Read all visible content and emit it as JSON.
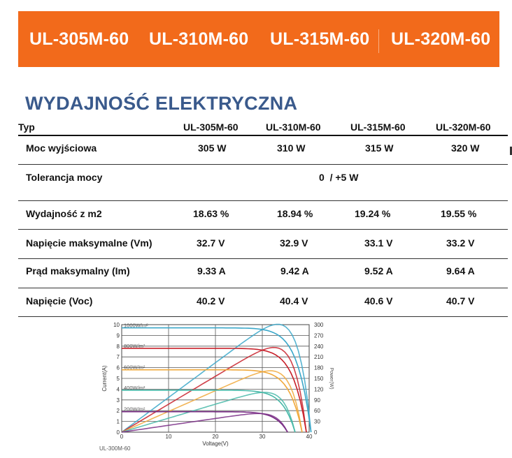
{
  "banner": {
    "models": [
      "UL-305M-60",
      "UL-310M-60",
      "UL-315M-60",
      "UL-320M-60"
    ],
    "color": "#f26a1b"
  },
  "section_title": "WYDAJNOŚĆ ELEKTRYCZNA",
  "table": {
    "header": {
      "type": "Typ",
      "cols": [
        "UL-305M-60",
        "UL-310M-60",
        "UL-315M-60",
        "UL-320M-60"
      ]
    },
    "rows": [
      {
        "label": "Moc wyjściowa",
        "values": [
          "305 W",
          "310 W",
          "315 W",
          "320 W"
        ]
      },
      {
        "label": "Tolerancja mocy",
        "merged": "0  / +5 W"
      },
      {
        "label": "Wydajność z m2",
        "values": [
          "18.63 %",
          "18.94 %",
          "19.24 %",
          "19.55 %"
        ]
      },
      {
        "label": "Napięcie maksymalne (Vm)",
        "values": [
          "32.7 V",
          "32.9 V",
          "33.1 V",
          "33.2 V"
        ]
      },
      {
        "label": "Prąd maksymalny (Im)",
        "values": [
          "9.33 A",
          "9.42 A",
          "9.52 A",
          "9.64 A"
        ]
      },
      {
        "label": "Napięcie (Voc)",
        "values": [
          "40.2 V",
          "40.4 V",
          "40.6 V",
          "40.7 V"
        ]
      }
    ]
  },
  "chart_data": {
    "type": "line",
    "title": "",
    "caption": "UL-300M-60",
    "xlabel": "Voltage(V)",
    "ylabel": "Current(A)",
    "y2label": "Power(W)",
    "xlim": [
      0,
      40
    ],
    "ylim": [
      0,
      10
    ],
    "y2lim": [
      0,
      300
    ],
    "x_ticks": [
      "0",
      "10",
      "20",
      "30",
      "40"
    ],
    "y_ticks": [
      "0",
      "1",
      "2",
      "3",
      "4",
      "5",
      "6",
      "7",
      "8",
      "9",
      "10"
    ],
    "y2_ticks": [
      "0",
      "30",
      "60",
      "90",
      "120",
      "150",
      "180",
      "210",
      "240",
      "270",
      "300"
    ],
    "grid": true,
    "series": [
      {
        "name": "1000W/m²",
        "color": "#3aa7c9",
        "isc": 9.7,
        "voc": 40.4,
        "vmp": 33.0,
        "imp": 9.1,
        "pmax": 300
      },
      {
        "name": "800W/m²",
        "color": "#c8202a",
        "isc": 7.8,
        "voc": 39.4,
        "vmp": 32.3,
        "imp": 7.4,
        "pmax": 239
      },
      {
        "name": "600W/m²",
        "color": "#f0a83a",
        "isc": 5.8,
        "voc": 38.5,
        "vmp": 31.5,
        "imp": 5.6,
        "pmax": 176
      },
      {
        "name": "400W/m²",
        "color": "#47b8a8",
        "isc": 3.9,
        "voc": 37.0,
        "vmp": 30.5,
        "imp": 3.8,
        "pmax": 116
      },
      {
        "name": "200W/m²",
        "color": "#7a2e86",
        "isc": 1.9,
        "voc": 35.4,
        "vmp": 29.3,
        "imp": 1.9,
        "pmax": 56
      }
    ]
  }
}
